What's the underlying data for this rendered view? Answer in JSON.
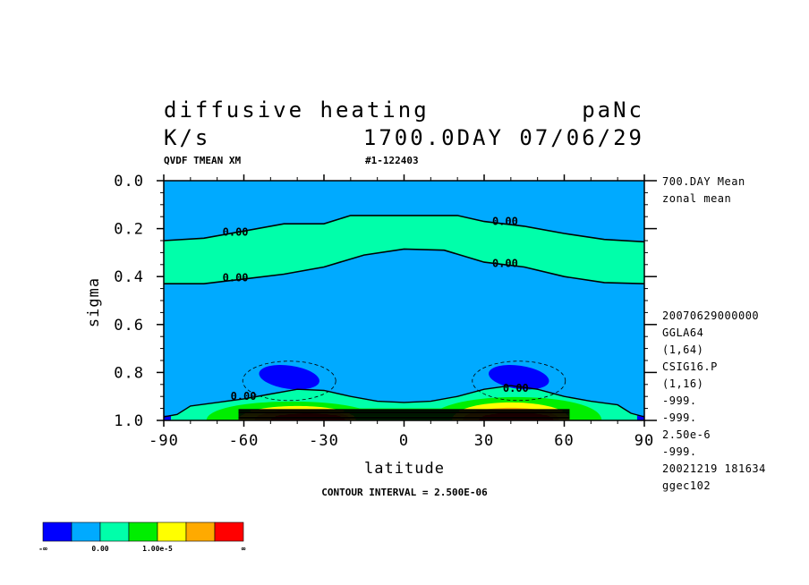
{
  "header": {
    "title_left": "diffusive heating",
    "title_right": "paNc",
    "units": "K/s",
    "time_label": "1700.0DAY 07/06/29",
    "var_label": "QVDF TMEAN XM",
    "run_label": "#1-122403"
  },
  "side_info": {
    "top_lines": [
      "700.DAY Mean",
      "zonal mean"
    ],
    "bottom_lines": [
      "20070629000000",
      "GGLA64",
      "(1,64)",
      "CSIG16.P",
      "(1,16)",
      "-999.",
      "-999.",
      "2.50e-6",
      "-999.",
      "20021219 181634",
      "ggec102"
    ]
  },
  "footer": {
    "contour_interval": "CONTOUR INTERVAL = 2.500E-06"
  },
  "colorbar": {
    "colors": [
      "#0000ff",
      "#00aaff",
      "#00ffaa",
      "#00ee00",
      "#ffff00",
      "#ffaa00",
      "#ff0000"
    ],
    "labels": [
      "-∞",
      "0.00",
      "1.00e-5",
      "∞"
    ]
  },
  "chart_data": {
    "type": "contour",
    "xlabel": "latitude",
    "ylabel": "sigma",
    "xlim": [
      -90,
      90
    ],
    "ylim": [
      1.0,
      0.0
    ],
    "xticks": [
      -90,
      -60,
      -30,
      0,
      30,
      60,
      90
    ],
    "xtick_labels": [
      "-90",
      "-60",
      "-30",
      "0",
      "30",
      "60",
      "90"
    ],
    "yticks": [
      0.0,
      0.2,
      0.4,
      0.6,
      0.8,
      1.0
    ],
    "ytick_labels": [
      "0.0",
      "0.2",
      "0.4",
      "0.6",
      "0.8",
      "1.0"
    ],
    "contour_labels": [
      {
        "text": "0.00",
        "lat": -68,
        "sigma": 0.23
      },
      {
        "text": "0.00",
        "lat": 33,
        "sigma": 0.185
      },
      {
        "text": "0.00",
        "lat": -68,
        "sigma": 0.42
      },
      {
        "text": "0.00",
        "lat": 33,
        "sigma": 0.36
      },
      {
        "text": "0.00",
        "lat": -65,
        "sigma": 0.915
      },
      {
        "text": "0.00",
        "lat": 37,
        "sigma": 0.88
      }
    ],
    "zero_contour_upper": [
      [
        -90,
        0.25
      ],
      [
        -75,
        0.24
      ],
      [
        -60,
        0.21
      ],
      [
        -45,
        0.18
      ],
      [
        -30,
        0.18
      ],
      [
        -20,
        0.145
      ],
      [
        0,
        0.145
      ],
      [
        20,
        0.145
      ],
      [
        30,
        0.17
      ],
      [
        45,
        0.19
      ],
      [
        60,
        0.22
      ],
      [
        75,
        0.245
      ],
      [
        90,
        0.255
      ]
    ],
    "zero_contour_lower": [
      [
        -90,
        0.43
      ],
      [
        -75,
        0.43
      ],
      [
        -60,
        0.41
      ],
      [
        -45,
        0.39
      ],
      [
        -30,
        0.36
      ],
      [
        -15,
        0.31
      ],
      [
        0,
        0.285
      ],
      [
        15,
        0.29
      ],
      [
        30,
        0.34
      ],
      [
        45,
        0.36
      ],
      [
        60,
        0.4
      ],
      [
        75,
        0.425
      ],
      [
        90,
        0.43
      ]
    ],
    "negative_regions": [
      {
        "lat_center": -43,
        "sigma_center": 0.82
      },
      {
        "lat_center": 43,
        "sigma_center": 0.82
      }
    ]
  }
}
